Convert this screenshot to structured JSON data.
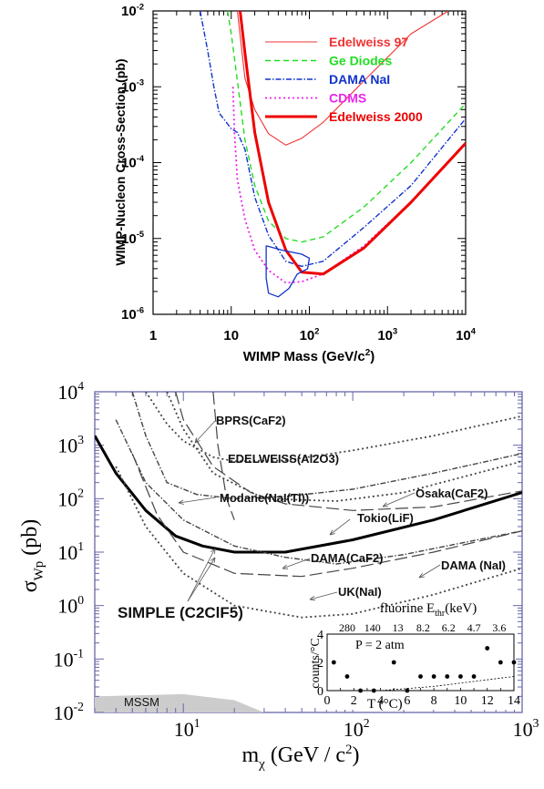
{
  "chart_data": [
    {
      "type": "line",
      "xlabel": "WIMP Mass (GeV/c",
      "xlabel_sup": "2",
      "xlabel_tail": ")",
      "ylabel": "WIMP-Nucleon Cross-Section (pb)",
      "xscale": "log",
      "yscale": "log",
      "xlim": [
        1,
        10000
      ],
      "ylim": [
        1e-06,
        0.01
      ],
      "x_ticks": [
        {
          "base": "1",
          "exp": ""
        },
        {
          "base": "10",
          "exp": ""
        },
        {
          "base": "10",
          "exp": "2"
        },
        {
          "base": "10",
          "exp": "3"
        },
        {
          "base": "10",
          "exp": "4"
        }
      ],
      "y_ticks": [
        {
          "base": "10",
          "exp": "-6"
        },
        {
          "base": "10",
          "exp": "-5"
        },
        {
          "base": "10",
          "exp": "-4"
        },
        {
          "base": "10",
          "exp": "-3"
        },
        {
          "base": "10",
          "exp": "-2"
        }
      ],
      "legend_position": "top-right",
      "series": [
        {
          "name": "Edelweiss 97",
          "color": "#ee3333",
          "style": "solid-thin",
          "points": [
            [
              12,
              0.01
            ],
            [
              15,
              0.0013
            ],
            [
              20,
              0.0005
            ],
            [
              30,
              0.00024
            ],
            [
              50,
              0.00017
            ],
            [
              80,
              0.00021
            ],
            [
              150,
              0.00034
            ],
            [
              500,
              0.0012
            ],
            [
              2000,
              0.005
            ],
            [
              6000,
              0.01
            ]
          ]
        },
        {
          "name": "Ge Diodes",
          "color": "#22dd22",
          "style": "dashed",
          "points": [
            [
              9,
              0.01
            ],
            [
              10,
              0.005
            ],
            [
              12,
              0.0012
            ],
            [
              15,
              0.0002
            ],
            [
              20,
              5e-05
            ],
            [
              30,
              1.7e-05
            ],
            [
              50,
              1e-05
            ],
            [
              80,
              9e-06
            ],
            [
              150,
              1.05e-05
            ],
            [
              500,
              2.6e-05
            ],
            [
              2000,
              0.0001
            ],
            [
              10000,
              0.0006
            ]
          ]
        },
        {
          "name": "DAMA NaI",
          "color": "#1133cc",
          "style": "dash-dot",
          "points": [
            [
              4,
              0.01
            ],
            [
              5,
              0.003
            ],
            [
              6,
              0.001
            ],
            [
              7,
              0.00045
            ],
            [
              10,
              0.00028
            ],
            [
              12,
              0.00025
            ],
            [
              15,
              0.00015
            ],
            [
              20,
              3.5e-05
            ],
            [
              30,
              1.1e-05
            ],
            [
              50,
              5e-06
            ],
            [
              80,
              4.3e-06
            ],
            [
              150,
              5e-06
            ],
            [
              500,
              1.4e-05
            ],
            [
              2000,
              5e-05
            ],
            [
              10000,
              0.00038
            ]
          ]
        },
        {
          "name": "CDMS",
          "color": "#ee22ee",
          "style": "dotted",
          "points": [
            [
              10.5,
              0.001
            ],
            [
              11,
              0.00025
            ],
            [
              12,
              6e-05
            ],
            [
              15,
              1.8e-05
            ],
            [
              20,
              7e-06
            ],
            [
              30,
              3.8e-06
            ],
            [
              50,
              2.6e-06
            ],
            [
              80,
              2.7e-06
            ],
            [
              150,
              3.4e-06
            ],
            [
              500,
              8e-06
            ],
            [
              2000,
              3e-05
            ],
            [
              10000,
              0.00018
            ]
          ]
        },
        {
          "name": "Edelweiss 2000",
          "color": "#ee0000",
          "style": "solid-thick",
          "points": [
            [
              13,
              0.01
            ],
            [
              15,
              0.0028
            ],
            [
              20,
              0.00025
            ],
            [
              30,
              3e-05
            ],
            [
              50,
              7e-06
            ],
            [
              80,
              3.6e-06
            ],
            [
              150,
              3.4e-06
            ],
            [
              500,
              7.5e-06
            ],
            [
              2000,
              3e-05
            ],
            [
              10000,
              0.00018
            ]
          ]
        },
        {
          "name": "",
          "color": "#1133cc",
          "style": "closed-contour",
          "points": [
            [
              28,
              8e-06
            ],
            [
              45,
              7e-06
            ],
            [
              80,
              6.2e-06
            ],
            [
              100,
              5.5e-06
            ],
            [
              95,
              4e-06
            ],
            [
              70,
              3.4e-06
            ],
            [
              55,
              2.2e-06
            ],
            [
              40,
              1.7e-06
            ],
            [
              30,
              1.9e-06
            ],
            [
              28,
              3e-06
            ],
            [
              28,
              8e-06
            ]
          ]
        }
      ]
    },
    {
      "type": "line",
      "xlabel": "m",
      "xlabel_sub": "χ",
      "xlabel_tail": " (GeV / c",
      "xlabel_sup": "2",
      "xlabel_end": ")",
      "ylabel": "σ",
      "ylabel_sub": "Wp",
      "ylabel_tail": " (pb)",
      "xscale": "log",
      "yscale": "log",
      "xlim": [
        3,
        1000
      ],
      "ylim": [
        0.01,
        10000
      ],
      "x_ticks": [
        {
          "base": "10",
          "exp": "1"
        },
        {
          "base": "10",
          "exp": "2"
        },
        {
          "base": "10",
          "exp": "3"
        }
      ],
      "y_ticks": [
        {
          "base": "10",
          "exp": "-2"
        },
        {
          "base": "10",
          "exp": "-1"
        },
        {
          "base": "10",
          "exp": "0"
        },
        {
          "base": "10",
          "exp": "1"
        },
        {
          "base": "10",
          "exp": "2"
        },
        {
          "base": "10",
          "exp": "3"
        },
        {
          "base": "10",
          "exp": "4"
        }
      ],
      "series": [
        {
          "name": "SIMPLE (C2ClF5)",
          "color": "#000000",
          "style": "solid-thick",
          "points": [
            [
              3,
              1500
            ],
            [
              4,
              300
            ],
            [
              6,
              60
            ],
            [
              9,
              20
            ],
            [
              13,
              13
            ],
            [
              20,
              10
            ],
            [
              40,
              10
            ],
            [
              100,
              17
            ],
            [
              300,
              40
            ],
            [
              1000,
              130
            ]
          ]
        },
        {
          "name": "EDELWEISS(Al2O3)",
          "color": "#444444",
          "style": "dotted",
          "points": [
            [
              6,
              10000
            ],
            [
              8,
              2500
            ],
            [
              10,
              1200
            ],
            [
              15,
              600
            ],
            [
              20,
              500
            ],
            [
              40,
              520
            ],
            [
              100,
              800
            ],
            [
              300,
              1500
            ],
            [
              1000,
              3500
            ]
          ]
        },
        {
          "name": "Modane(NaI(Tl))",
          "color": "#444444",
          "style": "dash-dot",
          "points": [
            [
              5,
              10000
            ],
            [
              6,
              1500
            ],
            [
              8,
              200
            ],
            [
              12,
              120
            ],
            [
              20,
              100
            ],
            [
              40,
              110
            ],
            [
              100,
              150
            ],
            [
              300,
              300
            ],
            [
              1000,
              700
            ]
          ]
        },
        {
          "name": "Tokio(LiF)",
          "color": "#444444",
          "style": "long-dash",
          "points": [
            [
              9,
              10000
            ],
            [
              10,
              3000
            ],
            [
              15,
              400
            ],
            [
              25,
              130
            ],
            [
              40,
              80
            ],
            [
              100,
              60
            ],
            [
              300,
              70
            ],
            [
              1000,
              140
            ]
          ]
        },
        {
          "name": "Osaka(CaF2)",
          "color": "#444444",
          "style": "dotted",
          "points": [
            [
              8,
              10000
            ],
            [
              10,
              2000
            ],
            [
              15,
              300
            ],
            [
              30,
              100
            ],
            [
              80,
              90
            ],
            [
              200,
              130
            ],
            [
              1000,
              500
            ]
          ]
        },
        {
          "name": "DAMA(CaF2)",
          "color": "#444444",
          "style": "dash-dot",
          "points": [
            [
              4,
              3000
            ],
            [
              6,
              200
            ],
            [
              10,
              40
            ],
            [
              20,
              13
            ],
            [
              40,
              8
            ],
            [
              80,
              6
            ],
            [
              200,
              9
            ],
            [
              1000,
              25
            ]
          ]
        },
        {
          "name": "DAMA (NaI)",
          "color": "#444444",
          "style": "long-dash",
          "points": [
            [
              5,
              700
            ],
            [
              7,
              50
            ],
            [
              10,
              10
            ],
            [
              20,
              4
            ],
            [
              50,
              3.5
            ],
            [
              100,
              5
            ],
            [
              300,
              10
            ],
            [
              1000,
              25
            ]
          ]
        },
        {
          "name": "UK(NaI)",
          "color": "#444444",
          "style": "dotted",
          "points": [
            [
              4,
              400
            ],
            [
              6,
              30
            ],
            [
              10,
              4
            ],
            [
              20,
              1
            ],
            [
              50,
              0.6
            ],
            [
              100,
              0.7
            ],
            [
              300,
              1.6
            ],
            [
              1000,
              5
            ]
          ]
        },
        {
          "name": "BPRS(CaF2)",
          "color": "#444444",
          "style": "long-dash",
          "points": [
            [
              15,
              10000
            ],
            [
              16,
              1000
            ],
            [
              18,
              100
            ],
            [
              20,
              40
            ]
          ]
        }
      ],
      "shaded_region": {
        "name": "MSSM",
        "color": "#cccccc",
        "points": [
          [
            3,
            0.02
          ],
          [
            10,
            0.022
          ],
          [
            20,
            0.017
          ],
          [
            30,
            0.01
          ]
        ]
      },
      "annotations": [
        "BPRS(CaF2)",
        "EDELWEISS(Al2O3)",
        "Modane(NaI(Tl))",
        "Osaka(CaF2)",
        "Tokio(LiF)",
        "DAMA(CaF2)",
        "DAMA (NaI)",
        "UK(NaI)",
        "SIMPLE (C2ClF5)",
        "MSSM"
      ],
      "inset": {
        "type": "scatter",
        "top_label": "fluorine E",
        "top_label_sub": "thr",
        "top_label_tail": "(keV)",
        "top_ticks": [
          "280",
          "140",
          "13",
          "8.2",
          "6.2",
          "4.7",
          "3.6"
        ],
        "xlabel": "T (°C)",
        "ylabel": "counts/°C",
        "annotation": "P = 2 atm",
        "xlim": [
          0,
          14
        ],
        "ylim": [
          0,
          4
        ],
        "x_ticks": [
          "0",
          "2",
          "4",
          "6",
          "8",
          "10",
          "12",
          "14"
        ],
        "y_ticks": [
          "0",
          "2",
          "4"
        ],
        "points": [
          [
            0.5,
            2
          ],
          [
            1.5,
            1
          ],
          [
            2.5,
            0
          ],
          [
            3.5,
            0
          ],
          [
            5,
            2
          ],
          [
            6,
            0
          ],
          [
            7,
            1
          ],
          [
            8,
            1
          ],
          [
            9,
            1
          ],
          [
            10,
            1
          ],
          [
            11,
            1
          ],
          [
            12,
            3
          ],
          [
            13,
            2
          ],
          [
            14,
            2
          ]
        ],
        "threshold_curve": [
          [
            0,
            0
          ],
          [
            4,
            0
          ],
          [
            8,
            0.3
          ],
          [
            14,
            1
          ]
        ]
      }
    }
  ]
}
